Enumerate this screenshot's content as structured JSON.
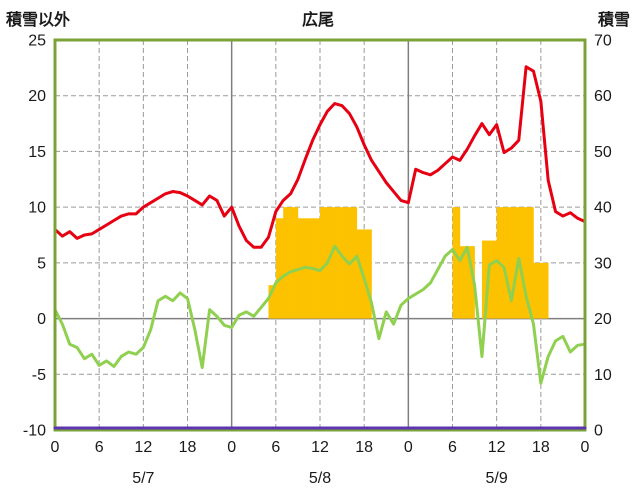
{
  "header": {
    "left_axis_title": "積雪以外",
    "station_title": "広尾",
    "right_axis_title": "積雪"
  },
  "chart_data": {
    "type": "line",
    "title": "広尾",
    "hours_total": 72,
    "x_tick_interval": 6,
    "x_tick_labels": [
      "0",
      "6",
      "12",
      "18",
      "0",
      "6",
      "12",
      "18",
      "0",
      "6",
      "12",
      "18",
      "0"
    ],
    "date_labels": [
      "5/7",
      "5/8",
      "5/9"
    ],
    "left_axis": {
      "title": "積雪以外",
      "min": -10,
      "max": 25,
      "ticks": [
        25,
        20,
        15,
        10,
        5,
        0,
        -5,
        -10
      ]
    },
    "right_axis": {
      "title": "積雪",
      "min": 0,
      "max": 70,
      "ticks": [
        70,
        60,
        50,
        40,
        30,
        20,
        10,
        0
      ]
    },
    "colors": {
      "frame": "#79a337",
      "grid_dashed": "#9a9a9a",
      "grid_solid": "#7f7f7f",
      "text": "#1a1a1a",
      "red_line": "#e60012",
      "green_line": "#90d050",
      "orange_bars": "#fcc200",
      "purple_line": "#5e35b1"
    },
    "series": [
      {
        "name": "temperature-red-line",
        "type": "line",
        "axis": "left",
        "color": "#e60012",
        "values": [
          8.0,
          7.4,
          7.8,
          7.2,
          7.5,
          7.6,
          8.0,
          8.4,
          8.8,
          9.2,
          9.4,
          9.4,
          10.0,
          10.4,
          10.8,
          11.2,
          11.4,
          11.3,
          11.0,
          10.6,
          10.2,
          11.0,
          10.6,
          9.2,
          10.0,
          8.3,
          7.0,
          6.4,
          6.4,
          7.3,
          9.6,
          10.6,
          11.2,
          12.5,
          14.3,
          16.0,
          17.4,
          18.6,
          19.3,
          19.1,
          18.4,
          17.2,
          15.6,
          14.2,
          13.2,
          12.2,
          11.4,
          10.6,
          10.4,
          13.4,
          13.1,
          12.9,
          13.3,
          13.9,
          14.5,
          14.2,
          15.2,
          16.4,
          17.5,
          16.5,
          17.4,
          14.9,
          15.3,
          16.0,
          22.6,
          22.2,
          19.5,
          12.4,
          9.6,
          9.2,
          9.5,
          9.0,
          8.7
        ]
      },
      {
        "name": "secondary-green-line",
        "type": "line",
        "axis": "left",
        "color": "#90d050",
        "values": [
          0.8,
          -0.5,
          -2.3,
          -2.6,
          -3.6,
          -3.2,
          -4.2,
          -3.8,
          -4.3,
          -3.4,
          -3.0,
          -3.2,
          -2.6,
          -1.0,
          1.6,
          2.0,
          1.6,
          2.3,
          1.8,
          -1.0,
          -4.4,
          0.8,
          0.2,
          -0.6,
          -0.8,
          0.3,
          0.6,
          0.2,
          1.0,
          1.8,
          3.2,
          3.8,
          4.2,
          4.4,
          4.6,
          4.5,
          4.3,
          5.0,
          6.5,
          5.6,
          4.9,
          5.6,
          3.6,
          1.4,
          -1.8,
          0.6,
          -0.5,
          1.2,
          1.8,
          2.2,
          2.6,
          3.2,
          4.4,
          5.6,
          6.2,
          5.2,
          6.4,
          3.0,
          -3.4,
          4.8,
          5.2,
          4.6,
          1.6,
          5.4,
          2.0,
          -0.5,
          -5.8,
          -3.4,
          -2.0,
          -1.6,
          -3.0,
          -2.4,
          -2.3
        ]
      },
      {
        "name": "sunshine-orange-bars",
        "type": "bar",
        "axis": "left",
        "color": "#fcc200",
        "values": [
          0,
          0,
          0,
          0,
          0,
          0,
          0,
          0,
          0,
          0,
          0,
          0,
          0,
          0,
          0,
          0,
          0,
          0,
          0,
          0,
          0,
          0,
          0,
          0,
          0,
          0,
          0,
          0,
          0,
          3,
          9,
          10,
          10,
          9,
          9,
          9,
          10,
          10,
          10,
          10,
          10,
          8,
          8,
          0,
          0,
          0,
          0,
          0,
          0,
          0,
          0,
          0,
          0,
          0,
          10,
          6.5,
          6.5,
          0,
          7,
          7,
          10,
          10,
          10,
          10,
          10,
          5,
          5,
          0,
          0,
          0,
          0,
          0
        ]
      },
      {
        "name": "snow-depth-purple-line",
        "type": "line",
        "axis": "right",
        "color": "#5e35b1",
        "constant": 0,
        "length": 73
      }
    ]
  }
}
